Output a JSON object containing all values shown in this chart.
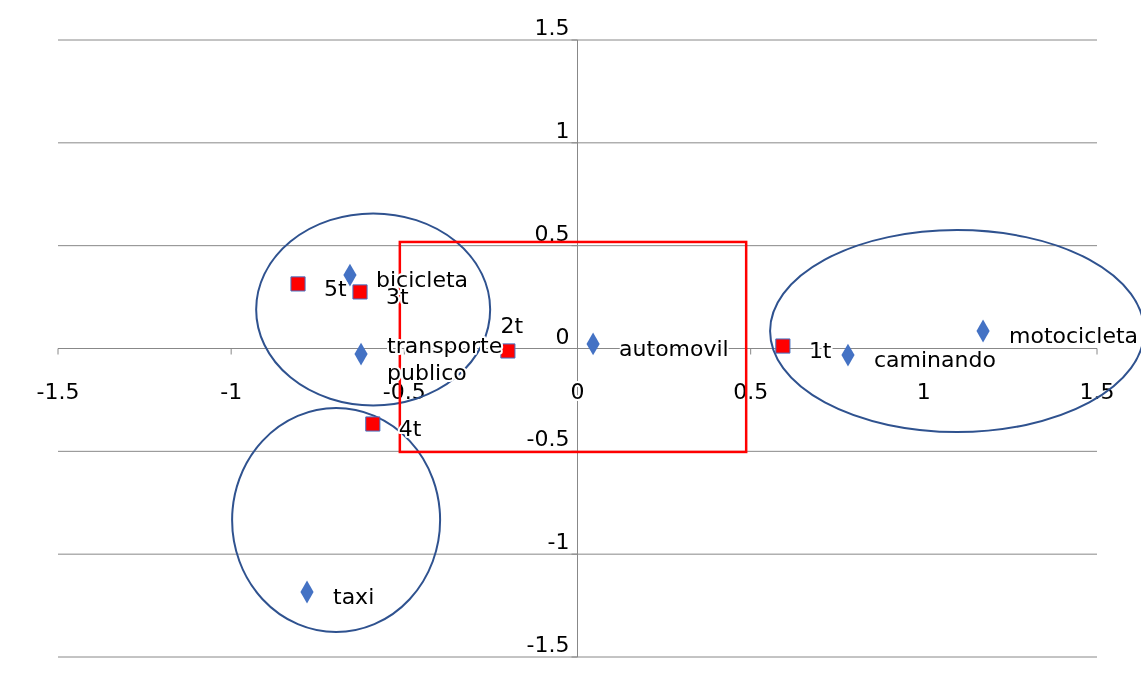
{
  "chart_data": {
    "type": "scatter",
    "xlim": [
      -1.5,
      1.5
    ],
    "ylim": [
      -1.5,
      1.5
    ],
    "xticks": [
      -1.5,
      -1,
      -0.5,
      0,
      0.5,
      1,
      1.5
    ],
    "yticks": [
      -1.5,
      -1,
      -0.5,
      0,
      0.5,
      1,
      1.5
    ],
    "grid": "y",
    "series": [
      {
        "color": "#4472c4",
        "marker": "diamond",
        "x": [
          -0.657,
          -0.625,
          0.045,
          0.781,
          1.171,
          -0.781
        ],
        "values": [
          0.357,
          -0.027,
          0.022,
          -0.032,
          0.085,
          -1.184
        ]
      },
      {
        "color": "#ff0000",
        "marker": "square",
        "x": [
          -0.807,
          -0.628,
          -0.201,
          -0.591,
          0.593
        ],
        "values": [
          0.314,
          0.275,
          -0.012,
          -0.367,
          0.012
        ]
      }
    ],
    "annotations": [
      {
        "text": "bicicleta",
        "x": -0.657,
        "y": 0.357
      },
      {
        "text": "transporte publico",
        "x": -0.625,
        "y": -0.027
      },
      {
        "text": "automovil",
        "x": 0.045,
        "y": 0.022
      },
      {
        "text": "caminando",
        "x": 0.781,
        "y": -0.032
      },
      {
        "text": "motocicleta",
        "x": 1.171,
        "y": 0.085
      },
      {
        "text": "taxi",
        "x": -0.781,
        "y": -1.184
      },
      {
        "text": "5t",
        "x": -0.807,
        "y": 0.314
      },
      {
        "text": "3t",
        "x": -0.628,
        "y": 0.275
      },
      {
        "text": "2t",
        "x": -0.201,
        "y": -0.012
      },
      {
        "text": "4t",
        "x": -0.591,
        "y": -0.367
      },
      {
        "text": "1t",
        "x": 0.593,
        "y": 0.012
      }
    ]
  }
}
